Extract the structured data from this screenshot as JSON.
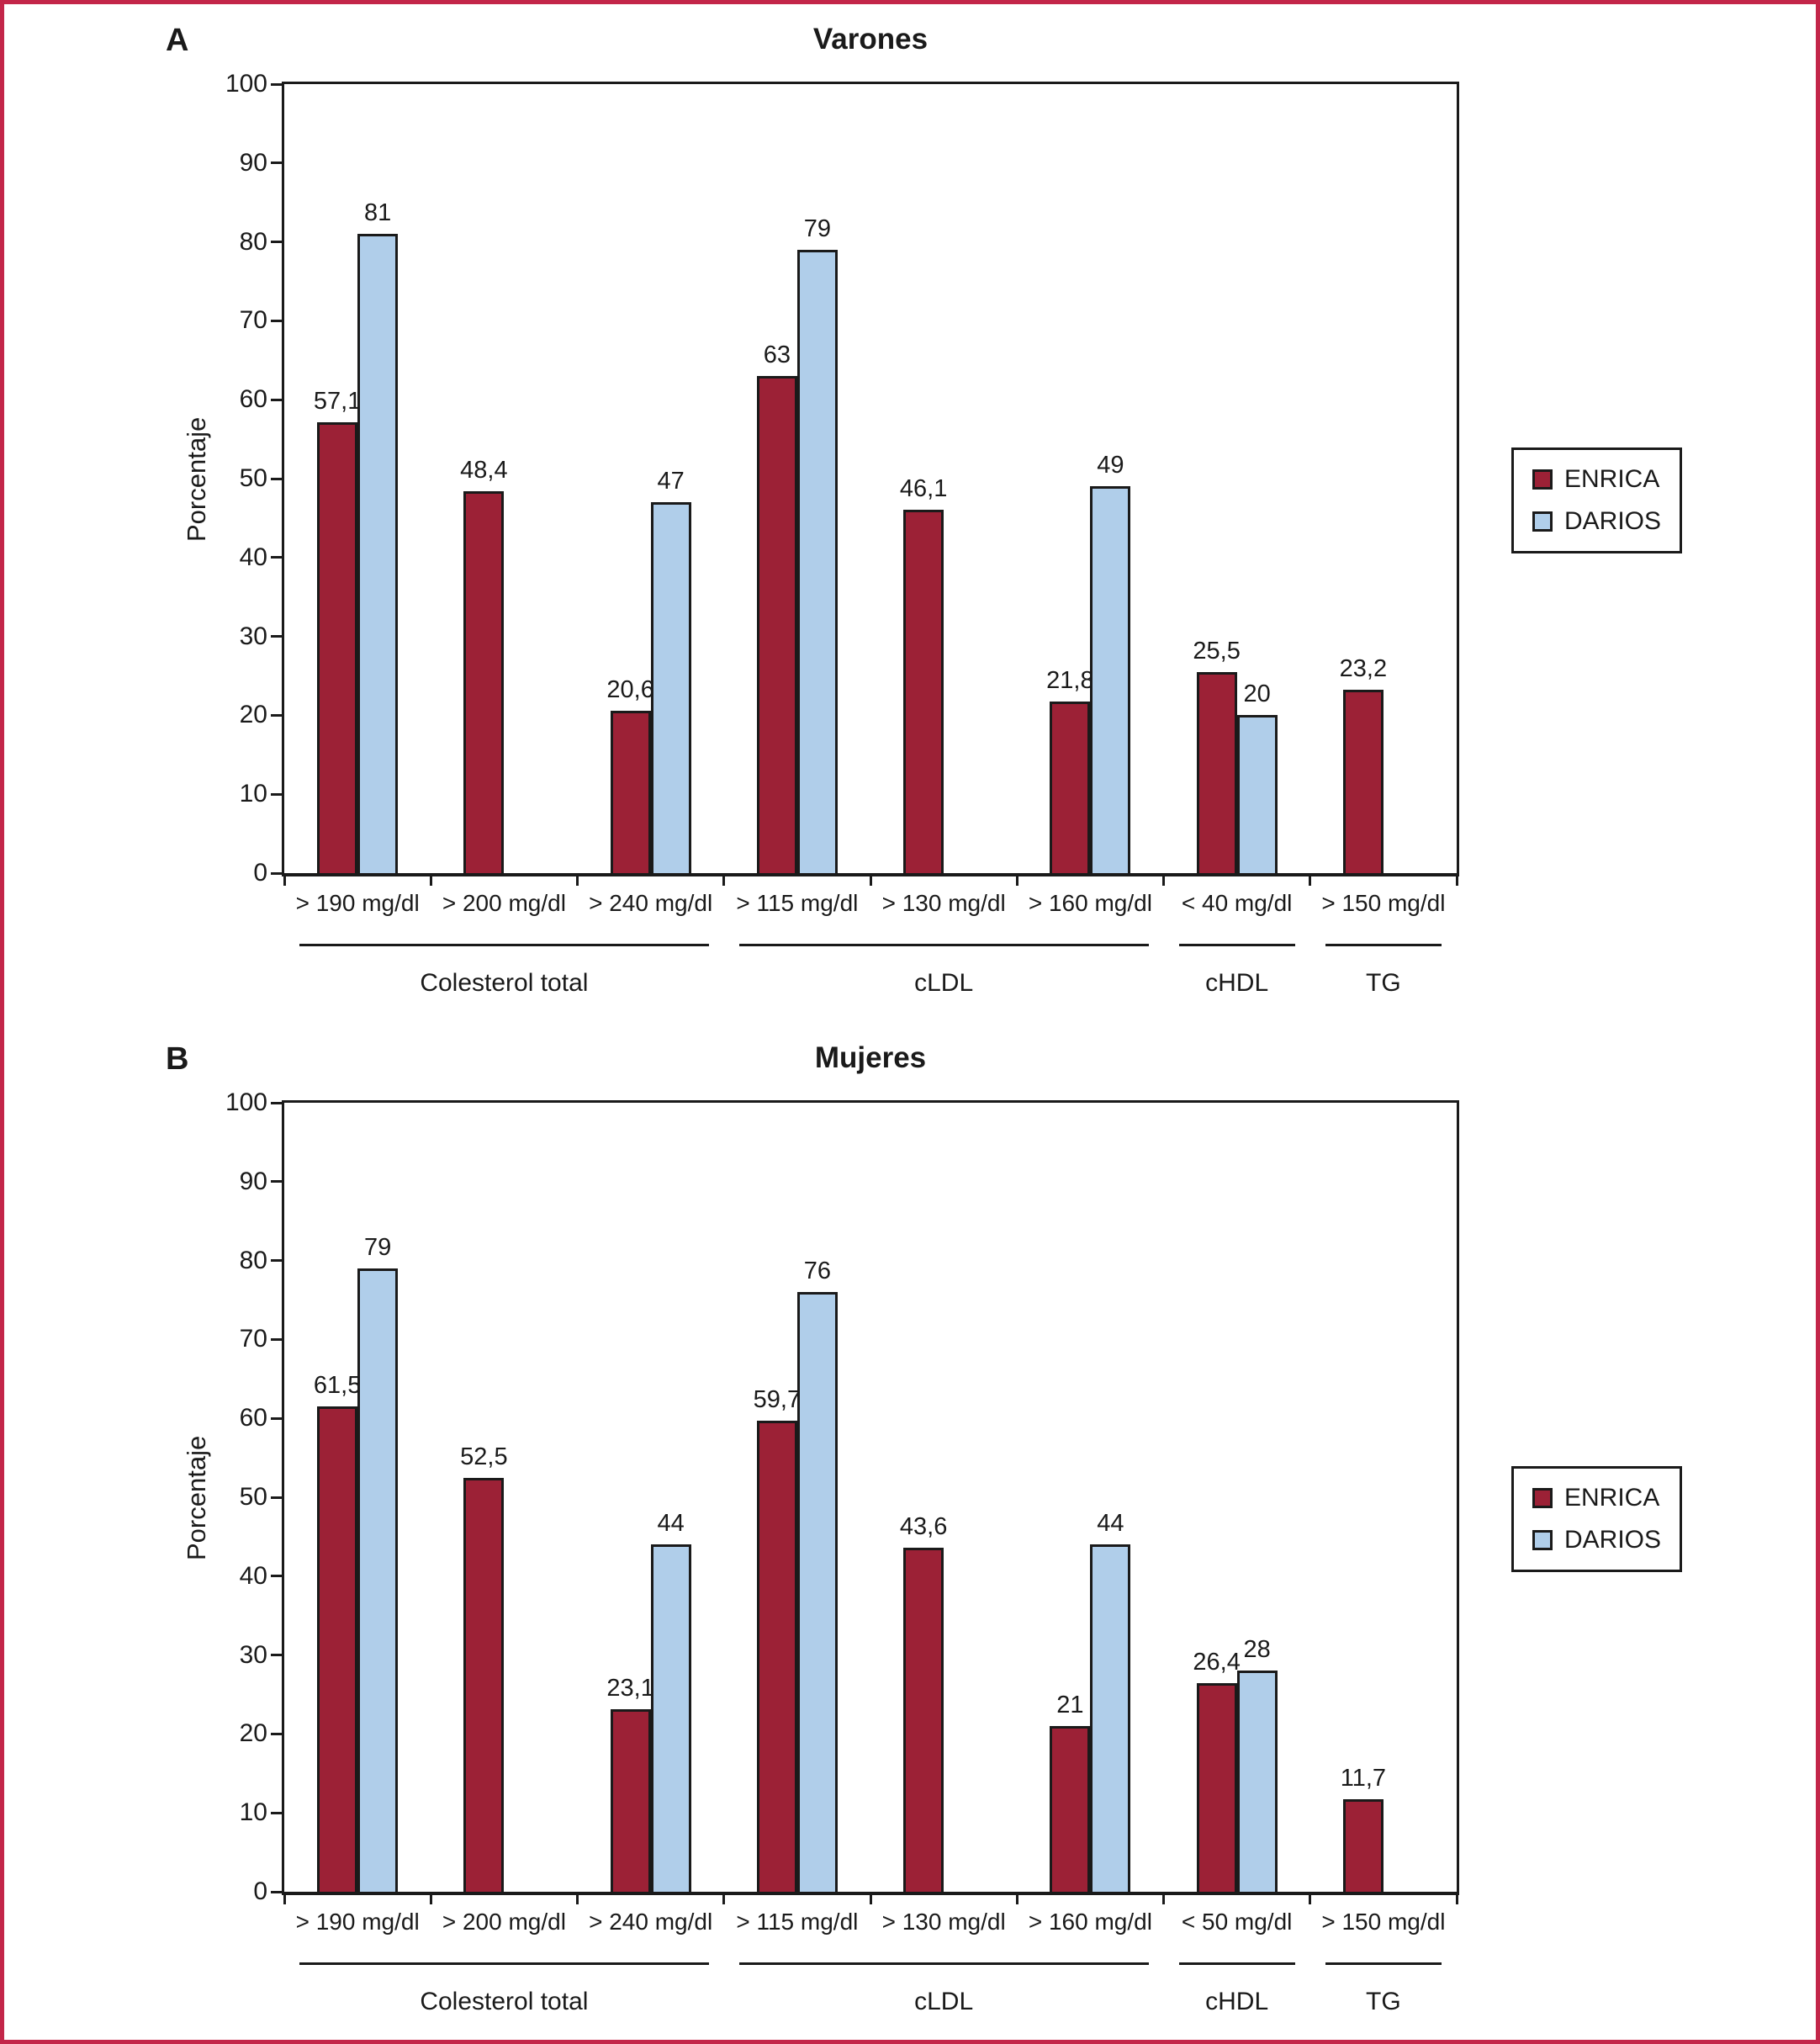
{
  "figure": {
    "frame_color": "#c32649",
    "colors": {
      "enrica": "#9c2136",
      "darios": "#b0ceea"
    }
  },
  "chart_data": [
    {
      "type": "bar",
      "panel_letter": "A",
      "title": "Varones",
      "ylabel": "Porcentaje",
      "ylim": [
        0,
        100
      ],
      "yticks": [
        0,
        10,
        20,
        30,
        40,
        50,
        60,
        70,
        80,
        90,
        100
      ],
      "grid": false,
      "legend": [
        "ENRICA",
        "DARIOS"
      ],
      "legend_position": "right",
      "categories": [
        "> 190 mg/dl",
        "> 200 mg/dl",
        "> 240 mg/dl",
        "> 115 mg/dl",
        "> 130 mg/dl",
        "> 160 mg/dl",
        "< 40 mg/dl",
        "> 150 mg/dl"
      ],
      "groups": [
        {
          "label": "Colesterol total",
          "span": [
            0,
            2
          ]
        },
        {
          "label": "cLDL",
          "span": [
            3,
            5
          ]
        },
        {
          "label": "cHDL",
          "span": [
            6,
            6
          ]
        },
        {
          "label": "TG",
          "span": [
            7,
            7
          ]
        }
      ],
      "series": [
        {
          "name": "ENRICA",
          "values": [
            57.1,
            48.4,
            20.6,
            63,
            46.1,
            21.8,
            25.5,
            23.2
          ],
          "labels": [
            "57,1",
            "48,4",
            "20,6",
            "63",
            "46,1",
            "21,8",
            "25,5",
            "23,2"
          ]
        },
        {
          "name": "DARIOS",
          "values": [
            81,
            null,
            47,
            79,
            null,
            49,
            20,
            null
          ],
          "labels": [
            "81",
            null,
            "47",
            "79",
            null,
            "49",
            "20",
            null
          ]
        }
      ]
    },
    {
      "type": "bar",
      "panel_letter": "B",
      "title": "Mujeres",
      "ylabel": "Porcentaje",
      "ylim": [
        0,
        100
      ],
      "yticks": [
        0,
        10,
        20,
        30,
        40,
        50,
        60,
        70,
        80,
        90,
        100
      ],
      "grid": false,
      "legend": [
        "ENRICA",
        "DARIOS"
      ],
      "legend_position": "right",
      "categories": [
        "> 190 mg/dl",
        "> 200 mg/dl",
        "> 240 mg/dl",
        "> 115 mg/dl",
        "> 130 mg/dl",
        "> 160 mg/dl",
        "< 50 mg/dl",
        "> 150 mg/dl"
      ],
      "groups": [
        {
          "label": "Colesterol total",
          "span": [
            0,
            2
          ]
        },
        {
          "label": "cLDL",
          "span": [
            3,
            5
          ]
        },
        {
          "label": "cHDL",
          "span": [
            6,
            6
          ]
        },
        {
          "label": "TG",
          "span": [
            7,
            7
          ]
        }
      ],
      "series": [
        {
          "name": "ENRICA",
          "values": [
            61.5,
            52.5,
            23.1,
            59.7,
            43.6,
            21,
            26.4,
            11.7
          ],
          "labels": [
            "61,5",
            "52,5",
            "23,1",
            "59,7",
            "43,6",
            "21",
            "26,4",
            "11,7"
          ]
        },
        {
          "name": "DARIOS",
          "values": [
            79,
            null,
            44,
            76,
            null,
            44,
            28,
            null
          ],
          "labels": [
            "79",
            null,
            "44",
            "76",
            null,
            "44",
            "28",
            null
          ]
        }
      ]
    }
  ]
}
